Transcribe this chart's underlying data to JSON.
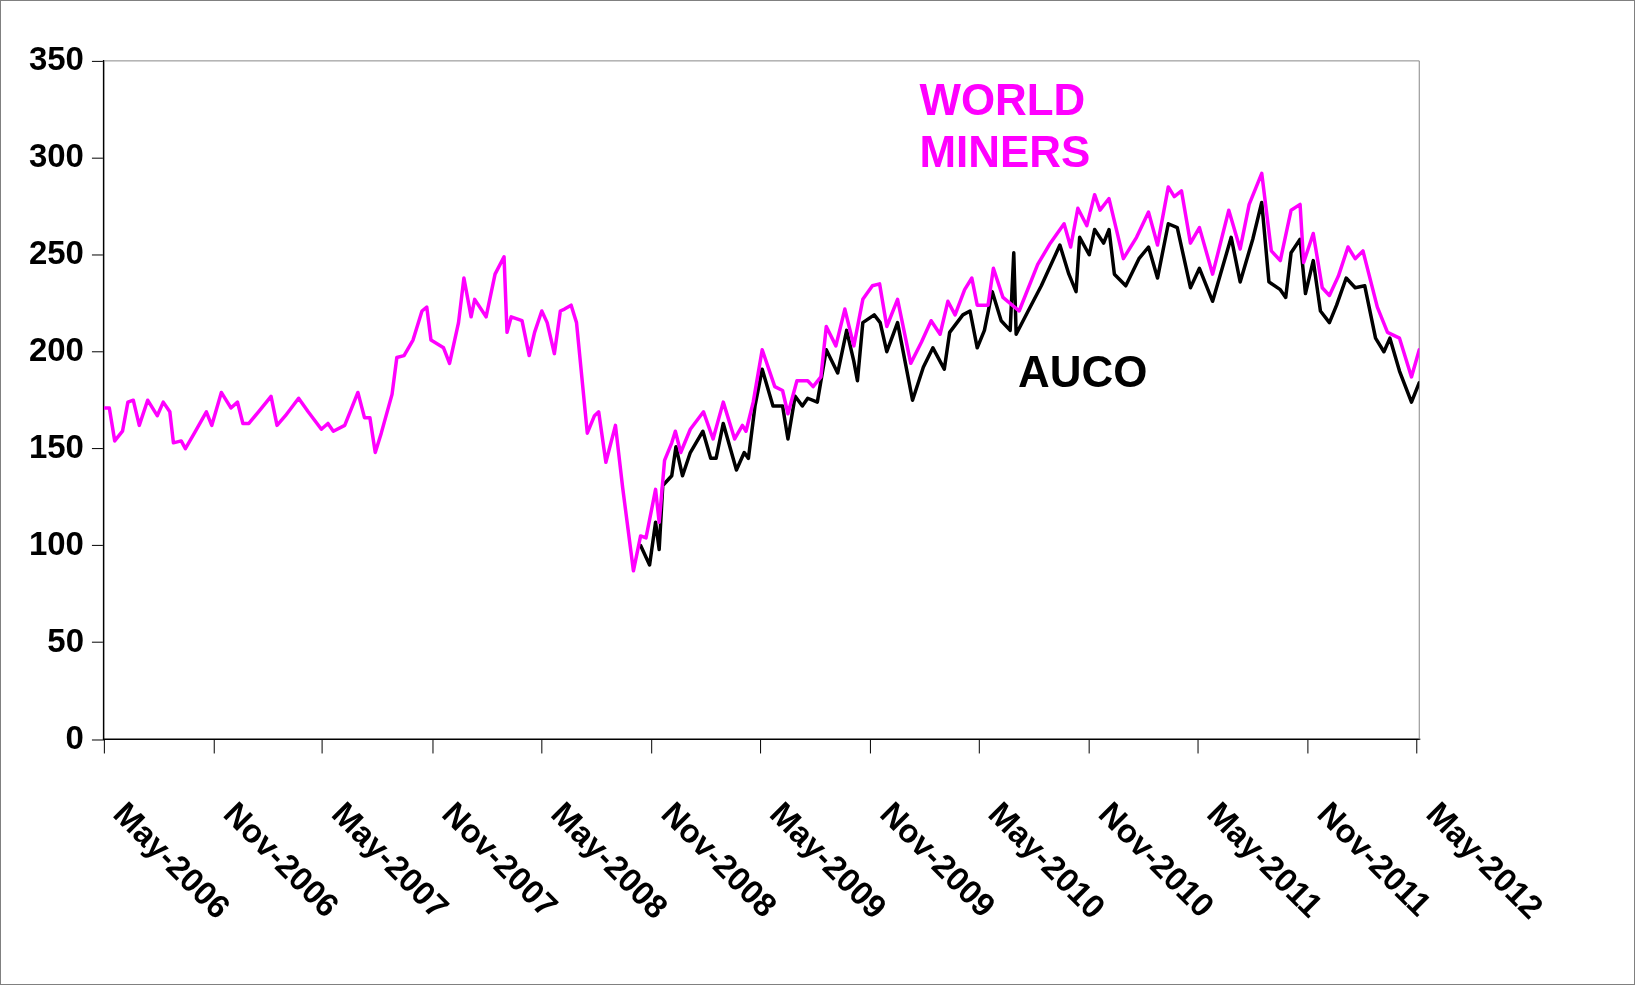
{
  "chart_data": {
    "type": "line",
    "legend": false,
    "grid": false,
    "marker": "none",
    "line_style": "solid",
    "xlim": [
      "2006-05",
      "2012-05-05"
    ],
    "xticks": [
      {
        "value": "2006-05",
        "label": "May-2006"
      },
      {
        "value": "2006-11",
        "label": "Nov-2006"
      },
      {
        "value": "2007-05",
        "label": "May-2007"
      },
      {
        "value": "2007-11",
        "label": "Nov-2007"
      },
      {
        "value": "2008-05",
        "label": "May-2008"
      },
      {
        "value": "2008-11",
        "label": "Nov-2008"
      },
      {
        "value": "2009-05",
        "label": "May-2009"
      },
      {
        "value": "2009-11",
        "label": "Nov-2009"
      },
      {
        "value": "2010-05",
        "label": "May-2010"
      },
      {
        "value": "2010-11",
        "label": "Nov-2010"
      },
      {
        "value": "2011-05",
        "label": "May-2011"
      },
      {
        "value": "2011-11",
        "label": "Nov-2011"
      },
      {
        "value": "2012-05",
        "label": "May-2012"
      }
    ],
    "ylim": [
      0,
      350
    ],
    "yticks": [
      0,
      50,
      100,
      150,
      200,
      250,
      300,
      350
    ],
    "series": [
      {
        "name": "WORLD MINERS",
        "color": "#ff00ff",
        "x": [
          "2006-05-01",
          "2006-05-10",
          "2006-05-19",
          "2006-06-01",
          "2006-06-10",
          "2006-06-19",
          "2006-06-29",
          "2006-07-13",
          "2006-07-29",
          "2006-08-08",
          "2006-08-19",
          "2006-08-25",
          "2006-09-07",
          "2006-09-14",
          "2006-09-29",
          "2006-10-19",
          "2006-10-28",
          "2006-11-13",
          "2006-11-29",
          "2006-12-10",
          "2006-12-19",
          "2006-12-29",
          "2007-01-14",
          "2007-02-04",
          "2007-02-14",
          "2007-02-28",
          "2007-03-22",
          "2007-04-07",
          "2007-04-29",
          "2007-05-10",
          "2007-05-19",
          "2007-06-07",
          "2007-06-29",
          "2007-07-10",
          "2007-07-19",
          "2007-07-28",
          "2007-08-07",
          "2007-08-25",
          "2007-09-02",
          "2007-09-14",
          "2007-09-29",
          "2007-10-14",
          "2007-10-22",
          "2007-10-29",
          "2007-11-19",
          "2007-11-29",
          "2007-12-14",
          "2007-12-23",
          "2008-01-04",
          "2008-01-10",
          "2008-01-29",
          "2008-02-13",
          "2008-02-28",
          "2008-03-04",
          "2008-03-11",
          "2008-03-29",
          "2008-04-10",
          "2008-04-19",
          "2008-05-01",
          "2008-05-10",
          "2008-05-22",
          "2008-06-01",
          "2008-06-08",
          "2008-06-19",
          "2008-06-28",
          "2008-07-16",
          "2008-07-28",
          "2008-08-04",
          "2008-08-16",
          "2008-09-01",
          "2008-09-13",
          "2008-10-01",
          "2008-10-13",
          "2008-10-22",
          "2008-11-07",
          "2008-11-13",
          "2008-11-22",
          "2008-12-04",
          "2008-12-10",
          "2008-12-19",
          "2009-01-04",
          "2009-01-26",
          "2009-02-11",
          "2009-02-28",
          "2009-03-19",
          "2009-04-01",
          "2009-04-07",
          "2009-04-19",
          "2009-05-04",
          "2009-05-25",
          "2009-06-07",
          "2009-06-16",
          "2009-07-01",
          "2009-07-19",
          "2009-07-28",
          "2009-08-10",
          "2009-08-19",
          "2009-09-04",
          "2009-09-19",
          "2009-10-04",
          "2009-10-19",
          "2009-11-04",
          "2009-11-16",
          "2009-11-28",
          "2009-12-16",
          "2010-01-07",
          "2010-01-25",
          "2010-02-10",
          "2010-02-25",
          "2010-03-10",
          "2010-03-22",
          "2010-04-07",
          "2010-04-19",
          "2010-04-28",
          "2010-05-16",
          "2010-05-25",
          "2010-06-10",
          "2010-07-07",
          "2010-08-07",
          "2010-08-28",
          "2010-09-20",
          "2010-10-01",
          "2010-10-13",
          "2010-10-28",
          "2010-11-10",
          "2010-11-19",
          "2010-12-04",
          "2010-12-28",
          "2011-01-19",
          "2011-02-08",
          "2011-02-23",
          "2011-03-13",
          "2011-03-23",
          "2011-04-04",
          "2011-04-19",
          "2011-05-04",
          "2011-05-26",
          "2011-06-22",
          "2011-07-11",
          "2011-07-26",
          "2011-08-16",
          "2011-09-01",
          "2011-09-16",
          "2011-10-04",
          "2011-10-19",
          "2011-10-25",
          "2011-11-10",
          "2011-11-25",
          "2011-12-07",
          "2011-12-22",
          "2012-01-07",
          "2012-01-19",
          "2012-02-01",
          "2012-02-25",
          "2012-03-13",
          "2012-04-02",
          "2012-04-22",
          "2012-05-05"
        ],
        "values": [
          171,
          171,
          154,
          159,
          174,
          175,
          162,
          175,
          167,
          174,
          169,
          153,
          154,
          150,
          158,
          169,
          162,
          179,
          171,
          174,
          163,
          163,
          169,
          177,
          162,
          167,
          176,
          169,
          160,
          163,
          159,
          162,
          179,
          166,
          166,
          148,
          158,
          178,
          197,
          198,
          206,
          221,
          223,
          206,
          202,
          194,
          215,
          238,
          218,
          227,
          218,
          240,
          249,
          210,
          218,
          216,
          198,
          210,
          221,
          215,
          199,
          221,
          222,
          224,
          215,
          158,
          167,
          169,
          143,
          162,
          130,
          87,
          105,
          104,
          129,
          112,
          144,
          153,
          159,
          148,
          160,
          169,
          155,
          174,
          155,
          162,
          159,
          174,
          201,
          182,
          180,
          168,
          185,
          185,
          182,
          187,
          213,
          203,
          222,
          203,
          227,
          234,
          235,
          213,
          227,
          194,
          205,
          216,
          209,
          226,
          219,
          232,
          238,
          224,
          224,
          243,
          228,
          221,
          245,
          256,
          266,
          254,
          274,
          265,
          281,
          273,
          279,
          248,
          259,
          272,
          255,
          285,
          280,
          283,
          256,
          264,
          240,
          273,
          253,
          276,
          292,
          252,
          247,
          273,
          276,
          246,
          261,
          233,
          229,
          239,
          254,
          248,
          252,
          223,
          210,
          207,
          187,
          201
        ]
      },
      {
        "name": "AUCO",
        "color": "#000000",
        "x": [
          "2008-10-13",
          "2008-10-28",
          "2008-11-07",
          "2008-11-13",
          "2008-11-19",
          "2008-12-04",
          "2008-12-11",
          "2008-12-22",
          "2009-01-04",
          "2009-01-25",
          "2009-02-07",
          "2009-02-16",
          "2009-02-28",
          "2009-03-22",
          "2009-04-04",
          "2009-04-11",
          "2009-04-22",
          "2009-05-04",
          "2009-05-22",
          "2009-06-07",
          "2009-06-16",
          "2009-06-28",
          "2009-07-10",
          "2009-07-19",
          "2009-08-04",
          "2009-08-19",
          "2009-09-07",
          "2009-09-22",
          "2009-10-04",
          "2009-10-10",
          "2009-10-19",
          "2009-11-07",
          "2009-11-17",
          "2009-11-28",
          "2009-12-16",
          "2010-01-10",
          "2010-01-28",
          "2010-02-13",
          "2010-03-04",
          "2010-03-13",
          "2010-04-04",
          "2010-04-16",
          "2010-04-28",
          "2010-05-10",
          "2010-05-23",
          "2010-06-07",
          "2010-06-22",
          "2010-06-28",
          "2010-07-02",
          "2010-07-22",
          "2010-08-13",
          "2010-09-13",
          "2010-09-28",
          "2010-10-10",
          "2010-10-16",
          "2010-11-01",
          "2010-11-10",
          "2010-11-25",
          "2010-12-04",
          "2010-12-13",
          "2011-01-01",
          "2011-01-23",
          "2011-02-08",
          "2011-02-23",
          "2011-03-13",
          "2011-03-28",
          "2011-04-19",
          "2011-05-04",
          "2011-05-26",
          "2011-06-26",
          "2011-07-11",
          "2011-08-01",
          "2011-08-16",
          "2011-08-28",
          "2011-09-16",
          "2011-09-25",
          "2011-10-04",
          "2011-10-19",
          "2011-10-28",
          "2011-11-10",
          "2011-11-22",
          "2011-12-07",
          "2011-12-19",
          "2012-01-04",
          "2012-01-19",
          "2012-02-04",
          "2012-02-22",
          "2012-03-07",
          "2012-03-17",
          "2012-04-02",
          "2012-04-22",
          "2012-05-05"
        ],
        "values": [
          100,
          90,
          112,
          98,
          131,
          136,
          151,
          136,
          148,
          159,
          145,
          145,
          163,
          139,
          148,
          145,
          172,
          191,
          172,
          172,
          155,
          177,
          172,
          176,
          174,
          201,
          189,
          211,
          195,
          185,
          215,
          219,
          215,
          200,
          215,
          175,
          192,
          202,
          191,
          210,
          219,
          221,
          202,
          211,
          231,
          216,
          211,
          251,
          209,
          221,
          234,
          255,
          240,
          231,
          259,
          250,
          263,
          256,
          263,
          240,
          234,
          248,
          254,
          238,
          266,
          264,
          233,
          243,
          226,
          259,
          236,
          258,
          277,
          236,
          232,
          228,
          251,
          258,
          230,
          247,
          221,
          215,
          224,
          238,
          233,
          234,
          207,
          200,
          207,
          190,
          174,
          184
        ]
      }
    ]
  }
}
